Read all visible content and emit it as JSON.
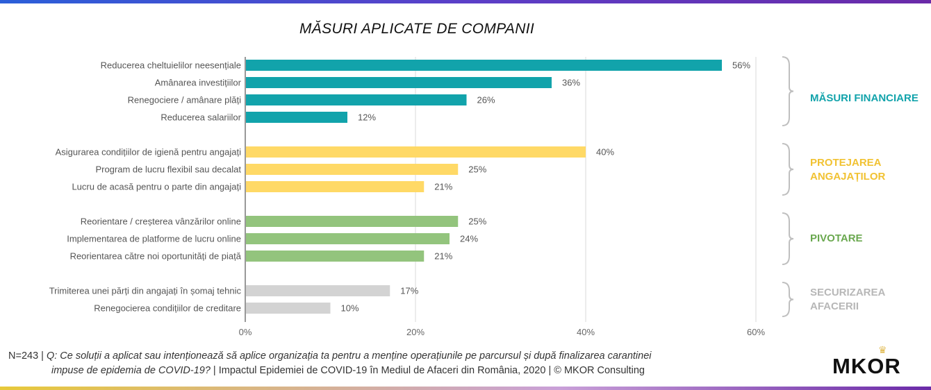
{
  "title": "MĂSURI APLICATE DE COMPANII",
  "chart_data": {
    "type": "bar",
    "orientation": "horizontal",
    "title": "MĂSURI APLICATE DE COMPANII",
    "xlim": [
      0,
      60
    ],
    "xticks": [
      "0%",
      "20%",
      "40%",
      "60%"
    ],
    "grid": true,
    "groups": [
      {
        "name": "MĂSURI FINANCIARE",
        "color": "#12a3ab",
        "items": [
          {
            "label": "Reducerea cheltuielilor neesențiale",
            "value": 56,
            "display": "56%"
          },
          {
            "label": "Amânarea investițiilor",
            "value": 36,
            "display": "36%"
          },
          {
            "label": "Renegociere / amânare plăți",
            "value": 26,
            "display": "26%"
          },
          {
            "label": "Reducerea salariilor",
            "value": 12,
            "display": "12%"
          }
        ]
      },
      {
        "name": "PROTEJAREA ANGAJAȚILOR",
        "color": "#ffd966",
        "items": [
          {
            "label": "Asigurarea condițiilor de igienă pentru angajați",
            "value": 40,
            "display": "40%"
          },
          {
            "label": "Program de lucru flexibil sau decalat",
            "value": 25,
            "display": "25%"
          },
          {
            "label": "Lucru de acasă pentru o parte din angajați",
            "value": 21,
            "display": "21%"
          }
        ]
      },
      {
        "name": "PIVOTARE",
        "color": "#93c47d",
        "items": [
          {
            "label": "Reorientare / creșterea vânzărilor online",
            "value": 25,
            "display": "25%"
          },
          {
            "label": "Implementarea de platforme de lucru online",
            "value": 24,
            "display": "24%"
          },
          {
            "label": "Reorientarea către noi oportunități de piață",
            "value": 21,
            "display": "21%"
          }
        ]
      },
      {
        "name": "SECURIZAREA AFACERII",
        "color": "#d3d3d3",
        "items": [
          {
            "label": "Trimiterea unei părți din angajați în șomaj tehnic",
            "value": 17,
            "display": "17%"
          },
          {
            "label": "Renegocierea condițiilor de creditare",
            "value": 10,
            "display": "10%"
          }
        ]
      }
    ]
  },
  "group_labels": {
    "financiare": "MĂSURI FINANCIARE",
    "protejarea_1": "PROTEJAREA",
    "protejarea_2": "ANGAJAȚILOR",
    "pivotare": "PIVOTARE",
    "securizarea_1": "SECURIZAREA",
    "securizarea_2": "AFACERII"
  },
  "group_colors": {
    "financiare": "#12a3ab",
    "protejarea": "#f1c232",
    "pivotare": "#6aa84f",
    "securizarea": "#b7b7b7"
  },
  "footer": {
    "prefix": "N=243 | ",
    "question": "Q: Ce soluții a aplicat sau intenționează să aplice organizația ta pentru a menține operațiunile pe parcursul și după finalizarea carantinei",
    "question_2": "impuse de epidemia de COVID-19?",
    "source": " | Impactul Epidemiei de COVID-19 în Mediul de Afaceri din România, 2020 | © MKOR Consulting"
  },
  "logo": {
    "text": "MKOR",
    "color": "#e0b84a"
  }
}
